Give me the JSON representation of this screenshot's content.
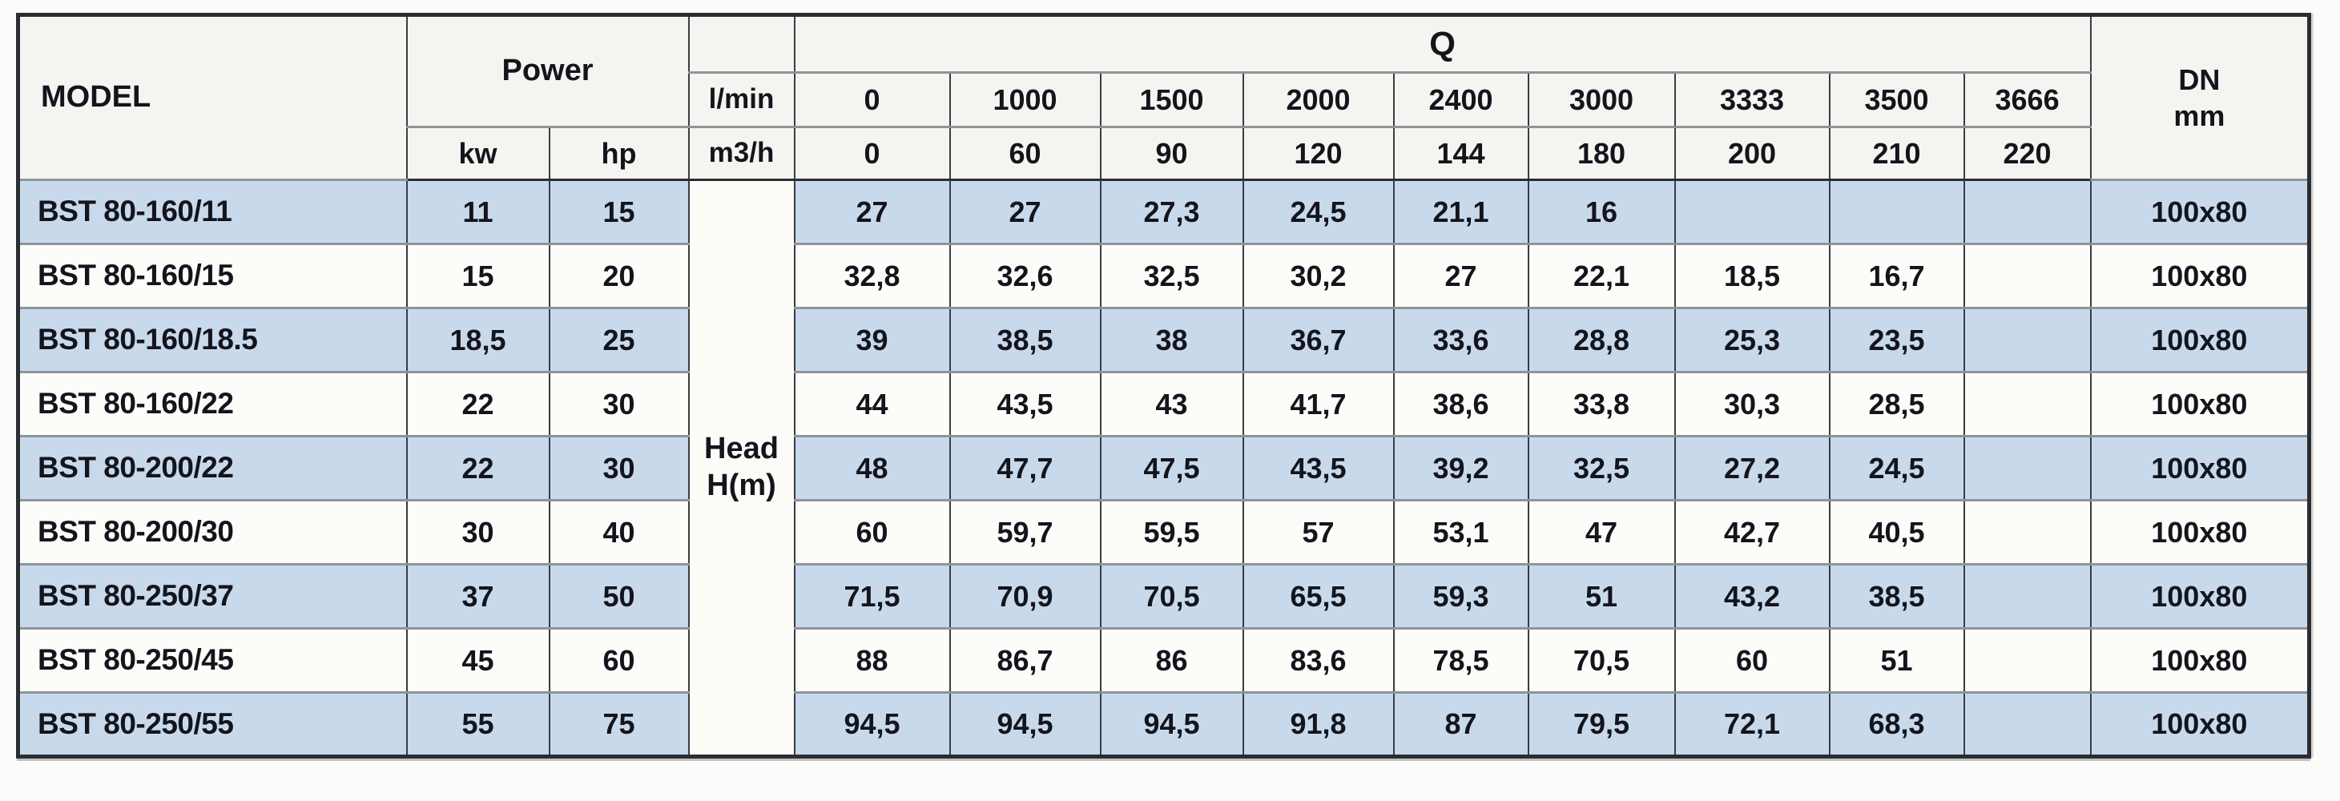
{
  "table": {
    "header": {
      "model_label": "MODEL",
      "power_label": "Power",
      "power_unit_kw": "kw",
      "power_unit_hp": "hp",
      "q_label": "Q",
      "flow_unit_lmin": "l/min",
      "flow_unit_m3h": "m3/h",
      "flow_lmin": [
        "0",
        "1000",
        "1500",
        "2000",
        "2400",
        "3000",
        "3333",
        "3500",
        "3666"
      ],
      "flow_m3h": [
        "0",
        "60",
        "90",
        "120",
        "144",
        "180",
        "200",
        "210",
        "220"
      ],
      "dn_line1": "DN",
      "dn_line2": "mm",
      "head_line1": "Head",
      "head_line2": "H(m)"
    },
    "rows": [
      {
        "model": "BST 80-160/11",
        "kw": "11",
        "hp": "15",
        "head_values": [
          "27",
          "27",
          "27,3",
          "24,5",
          "21,1",
          "16",
          "",
          "",
          ""
        ],
        "dn": "100x80",
        "shaded": true
      },
      {
        "model": "BST 80-160/15",
        "kw": "15",
        "hp": "20",
        "head_values": [
          "32,8",
          "32,6",
          "32,5",
          "30,2",
          "27",
          "22,1",
          "18,5",
          "16,7",
          ""
        ],
        "dn": "100x80",
        "shaded": false
      },
      {
        "model": "BST 80-160/18.5",
        "kw": "18,5",
        "hp": "25",
        "head_values": [
          "39",
          "38,5",
          "38",
          "36,7",
          "33,6",
          "28,8",
          "25,3",
          "23,5",
          ""
        ],
        "dn": "100x80",
        "shaded": true
      },
      {
        "model": "BST 80-160/22",
        "kw": "22",
        "hp": "30",
        "head_values": [
          "44",
          "43,5",
          "43",
          "41,7",
          "38,6",
          "33,8",
          "30,3",
          "28,5",
          ""
        ],
        "dn": "100x80",
        "shaded": false
      },
      {
        "model": "BST 80-200/22",
        "kw": "22",
        "hp": "30",
        "head_values": [
          "48",
          "47,7",
          "47,5",
          "43,5",
          "39,2",
          "32,5",
          "27,2",
          "24,5",
          ""
        ],
        "dn": "100x80",
        "shaded": true
      },
      {
        "model": "BST 80-200/30",
        "kw": "30",
        "hp": "40",
        "head_values": [
          "60",
          "59,7",
          "59,5",
          "57",
          "53,1",
          "47",
          "42,7",
          "40,5",
          ""
        ],
        "dn": "100x80",
        "shaded": false
      },
      {
        "model": "BST 80-250/37",
        "kw": "37",
        "hp": "50",
        "head_values": [
          "71,5",
          "70,9",
          "70,5",
          "65,5",
          "59,3",
          "51",
          "43,2",
          "38,5",
          ""
        ],
        "dn": "100x80",
        "shaded": true
      },
      {
        "model": "BST 80-250/45",
        "kw": "45",
        "hp": "60",
        "head_values": [
          "88",
          "86,7",
          "86",
          "83,6",
          "78,5",
          "70,5",
          "60",
          "51",
          ""
        ],
        "dn": "100x80",
        "shaded": false
      },
      {
        "model": "BST 80-250/55",
        "kw": "55",
        "hp": "75",
        "head_values": [
          "94,5",
          "94,5",
          "94,5",
          "91,8",
          "87",
          "79,5",
          "72,1",
          "68,3",
          ""
        ],
        "dn": "100x80",
        "shaded": true
      }
    ]
  },
  "colors": {
    "row_shaded": "#c9d9ec",
    "row_plain": "#fcfcf9",
    "header_bg": "#f5f4f0",
    "border_dark": "#2a2e33",
    "border_horizontal": "#8f9499",
    "text": "#14141c"
  }
}
